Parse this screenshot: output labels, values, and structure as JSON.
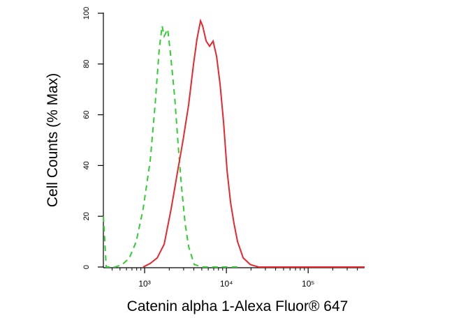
{
  "chart_data": {
    "type": "line",
    "x_label": "Catenin alpha 1-Alexa Fluor® 647",
    "y_label": "Cell Counts (% Max)",
    "xscale": "log",
    "xlim": [
      313,
      490000
    ],
    "xticks": [
      {
        "value": 1000,
        "label": "10³"
      },
      {
        "value": 10000,
        "label": "10⁴"
      },
      {
        "value": 100000,
        "label": "10⁵"
      }
    ],
    "minor_xticks": [
      400,
      500,
      600,
      700,
      800,
      900,
      2000,
      3000,
      4000,
      5000,
      6000,
      7000,
      8000,
      9000,
      20000,
      30000,
      40000,
      50000,
      60000,
      70000,
      80000,
      90000,
      200000,
      300000,
      400000
    ],
    "ylim": [
      0,
      100
    ],
    "yticks": [
      0,
      20,
      40,
      60,
      80,
      100
    ],
    "series": [
      {
        "color": "#33cc33",
        "dash": true,
        "x": [
          313,
          339,
          437,
          532,
          649,
          789,
          961,
          1171,
          1343,
          1511,
          1636,
          1735,
          1914,
          2071,
          2333,
          2573,
          2837,
          3130,
          3453,
          4045,
          5119,
          13700
        ],
        "values": [
          20,
          0,
          0,
          1,
          3.5,
          10,
          23,
          42,
          64,
          86,
          95,
          91,
          93.7,
          84,
          67,
          48,
          31,
          17,
          8,
          1,
          0,
          0
        ]
      },
      {
        "color": "#e8262b",
        "dash": false,
        "x": [
          961,
          1171,
          1426,
          1735,
          2112,
          2573,
          2952,
          3453,
          3967,
          4371,
          4824,
          5119,
          5656,
          6233,
          6872,
          7587,
          8368,
          9235,
          10190,
          11240,
          12400,
          13700,
          16070,
          19530,
          24800,
          490000
        ],
        "values": [
          0,
          1.4,
          3.6,
          9,
          23,
          39,
          50,
          64,
          80,
          90,
          97,
          95,
          89,
          87,
          89,
          83,
          72,
          57,
          38,
          25.5,
          17,
          10,
          3.6,
          1,
          0,
          0
        ]
      }
    ]
  }
}
